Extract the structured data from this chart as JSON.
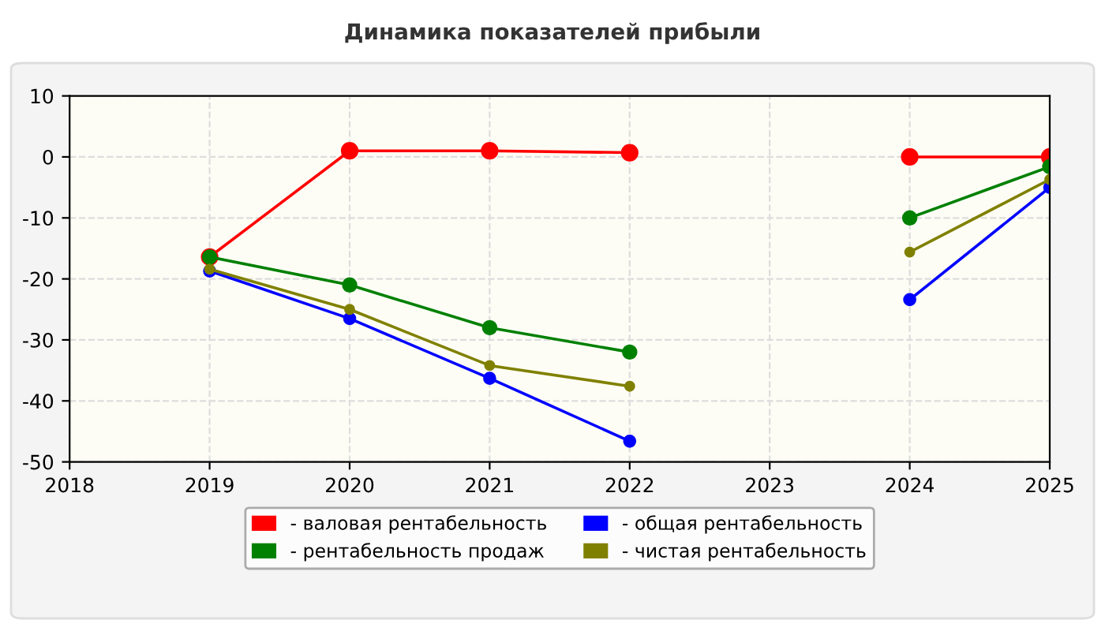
{
  "chart_data": {
    "type": "line",
    "title": "Динамика показателей прибыли",
    "x": [
      2019,
      2020,
      2021,
      2022,
      2023,
      2024,
      2025
    ],
    "series": [
      {
        "name": "- валовая рентабельность",
        "color": "#ff0000",
        "values": [
          -16.4,
          1,
          1,
          0.7,
          null,
          0,
          0
        ]
      },
      {
        "name": "- рентабельность продаж",
        "color": "#008000",
        "values": [
          -16.4,
          -21,
          -28,
          -32,
          null,
          -10,
          -1.6
        ]
      },
      {
        "name": "- общая рентабельность",
        "color": "#0000ff",
        "values": [
          -18.7,
          -26.5,
          -36.3,
          -46.6,
          null,
          -23.4,
          -5
        ]
      },
      {
        "name": "- чистая рентабельность",
        "color": "#808000",
        "values": [
          -18.4,
          -25,
          -34.2,
          -37.6,
          null,
          -15.6,
          -3.7
        ]
      }
    ],
    "xlim": [
      2018,
      2025
    ],
    "xticks": [
      2018,
      2019,
      2020,
      2021,
      2022,
      2023,
      2024,
      2025
    ],
    "ylim": [
      -50,
      10
    ],
    "yticks": [
      -50,
      -40,
      -30,
      -20,
      -10,
      0,
      10
    ],
    "grid": true,
    "legend": "bottom",
    "marker": "circle",
    "line_style": "solid"
  }
}
